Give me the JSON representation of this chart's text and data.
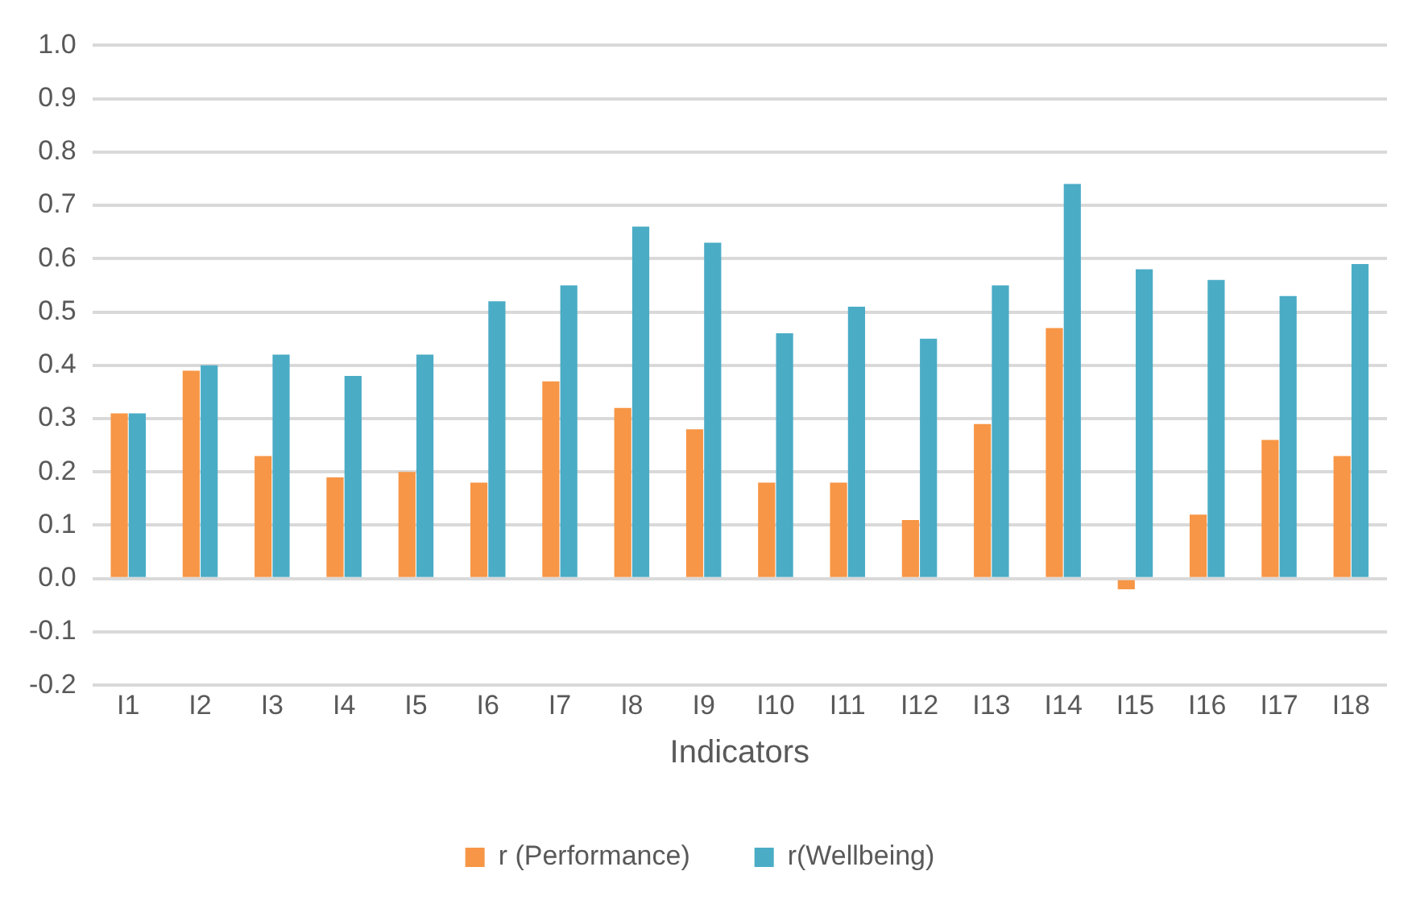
{
  "chart_data": {
    "type": "bar",
    "xlabel": "Indicators",
    "categories": [
      "I1",
      "I2",
      "I3",
      "I4",
      "I5",
      "I6",
      "I7",
      "I8",
      "I9",
      "I10",
      "I11",
      "I12",
      "I13",
      "I14",
      "I15",
      "I16",
      "I17",
      "I18"
    ],
    "series": [
      {
        "name": "r (Performance)",
        "color": "#f79646",
        "values": [
          0.31,
          0.39,
          0.23,
          0.19,
          0.2,
          0.18,
          0.37,
          0.32,
          0.28,
          0.18,
          0.18,
          0.11,
          0.29,
          0.47,
          -0.02,
          0.12,
          0.26,
          0.23
        ]
      },
      {
        "name": "r(Wellbeing)",
        "color": "#4bacc6",
        "values": [
          0.31,
          0.4,
          0.42,
          0.38,
          0.42,
          0.52,
          0.55,
          0.66,
          0.63,
          0.46,
          0.51,
          0.45,
          0.55,
          0.74,
          0.58,
          0.56,
          0.53,
          0.59
        ]
      }
    ],
    "ylim": [
      -0.2,
      1.0
    ],
    "yticks": [
      {
        "value": -0.2,
        "label": "-0.2"
      },
      {
        "value": -0.1,
        "label": "-0.1"
      },
      {
        "value": 0,
        "label": "0.0"
      },
      {
        "value": 0.1,
        "label": "0.1"
      },
      {
        "value": 0.2,
        "label": "0.2"
      },
      {
        "value": 0.3,
        "label": "0.3"
      },
      {
        "value": 0.4,
        "label": "0.4"
      },
      {
        "value": 0.5,
        "label": "0.5"
      },
      {
        "value": 0.6,
        "label": "0.6"
      },
      {
        "value": 0.7,
        "label": "0.7"
      },
      {
        "value": 0.8,
        "label": "0.8"
      },
      {
        "value": 0.9,
        "label": "0.9"
      },
      {
        "value": 1.0,
        "label": "1.0"
      }
    ],
    "grid": "y",
    "legend": "bottom"
  }
}
